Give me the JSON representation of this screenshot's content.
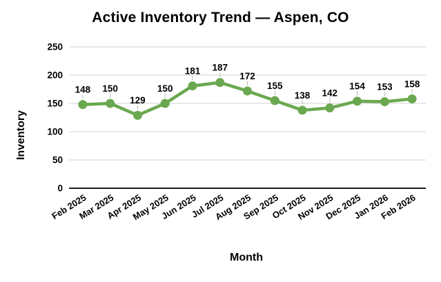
{
  "chart_data": {
    "type": "line",
    "title": "Active Inventory Trend — Aspen, CO",
    "xlabel": "Month",
    "ylabel": "Inventory",
    "categories": [
      "Feb 2025",
      "Mar 2025",
      "Apr 2025",
      "May 2025",
      "Jun 2025",
      "Jul 2025",
      "Aug 2025",
      "Sep 2025",
      "Oct 2025",
      "Nov 2025",
      "Dec 2025",
      "Jan 2026",
      "Feb 2026"
    ],
    "series": [
      {
        "name": "Inventory",
        "values": [
          148,
          150,
          129,
          150,
          181,
          187,
          172,
          155,
          138,
          142,
          154,
          153,
          158
        ]
      }
    ],
    "ylim": [
      0,
      250
    ],
    "ytick_step": 50,
    "yticks": [
      0,
      50,
      100,
      150,
      200,
      250
    ],
    "grid": "horizontal",
    "legend_position": "none",
    "data_labels": true,
    "marker": "circle",
    "x_label_rotation_deg": -32,
    "colors": {
      "line": "#6aa84f",
      "marker": "#6aa84f",
      "grid": "#d9d9d9",
      "axis": "#1a1a1a",
      "text": "#000000",
      "leader": "#b7b7b7",
      "background": "#ffffff"
    }
  }
}
